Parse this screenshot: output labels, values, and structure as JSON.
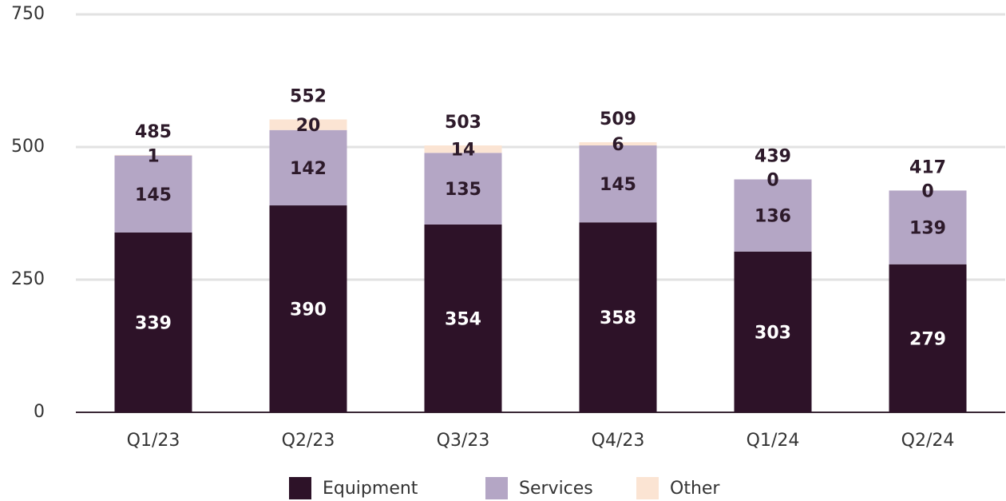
{
  "chart_data": {
    "type": "stacked_bar",
    "categories": [
      "Q1/23",
      "Q2/23",
      "Q3/23",
      "Q4/23",
      "Q1/24",
      "Q2/24"
    ],
    "series": [
      {
        "name": "Equipment",
        "color": "#2d1228",
        "values": [
          339,
          390,
          354,
          358,
          303,
          279
        ]
      },
      {
        "name": "Services",
        "color": "#b4a6c5",
        "values": [
          145,
          142,
          135,
          145,
          136,
          139
        ]
      },
      {
        "name": "Other",
        "color": "#fbe4d3",
        "values": [
          1,
          20,
          14,
          6,
          0,
          0
        ]
      }
    ],
    "totals": [
      485,
      552,
      503,
      509,
      439,
      417
    ],
    "ylim": [
      0,
      750
    ],
    "yticks": [
      0,
      250,
      500,
      750
    ],
    "grid": true,
    "legend": "bottom"
  }
}
